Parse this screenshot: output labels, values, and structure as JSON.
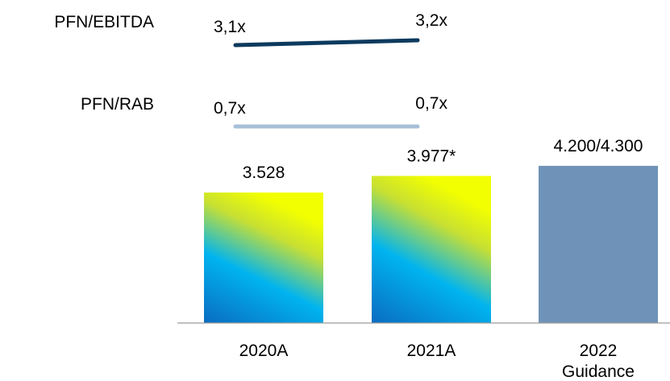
{
  "chart_data": {
    "type": "bar",
    "categories": [
      "2020A",
      "2021A",
      "2022 Guidance"
    ],
    "category_lines": [
      [
        "2020A"
      ],
      [
        "2021A"
      ],
      [
        "2022",
        "Guidance"
      ]
    ],
    "values": [
      3528,
      3977,
      4250
    ],
    "value_labels": [
      "3.528",
      "3.977*",
      "4.200/4.300"
    ],
    "ylim": [
      0,
      4400
    ],
    "grid": false,
    "bar_colors": [
      "gradient",
      "gradient",
      "#6f93b8"
    ],
    "gradient_colors": [
      "#0a6cc0",
      "#00b4ef",
      "#c8e032",
      "#f2ff00"
    ],
    "ratios": [
      {
        "name": "PFN/EBITDA",
        "labels": [
          "3,1x",
          "3,2x"
        ],
        "values": [
          3.1,
          3.2
        ],
        "color": "#0d3a5e"
      },
      {
        "name": "PFN/RAB",
        "labels": [
          "0,7x",
          "0,7x"
        ],
        "values": [
          0.7,
          0.7
        ],
        "color": "#a7c0d9"
      }
    ]
  }
}
